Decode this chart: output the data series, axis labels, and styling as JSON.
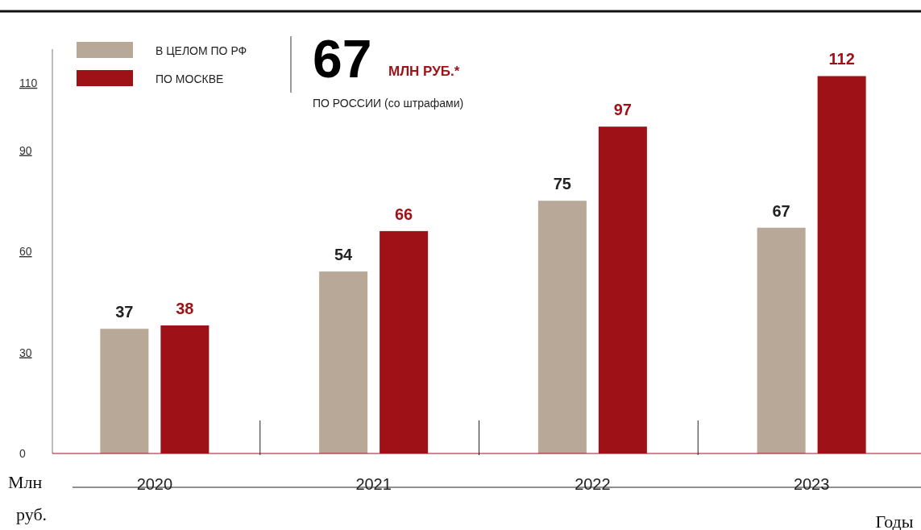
{
  "chart_data": {
    "type": "bar",
    "categories": [
      "2020",
      "2021",
      "2022",
      "2023"
    ],
    "series": [
      {
        "name": "В ЦЕЛОМ ПО РФ",
        "color": "#b8a897",
        "values": [
          37,
          54,
          75,
          67
        ]
      },
      {
        "name": "ПО МОСКВЕ",
        "color": "#9e1117",
        "values": [
          38,
          66,
          97,
          112
        ]
      }
    ],
    "ylim": [
      0,
      120
    ],
    "yticks": [
      0,
      30,
      60,
      90,
      110
    ],
    "data_labels": true,
    "legend": "top left",
    "grid": false,
    "xlabel": "Годы",
    "ylabel": "Млн руб.",
    "annotations": [
      "67",
      "МЛН РУБ.*",
      "ПО РОССИИ (со штрафами)"
    ]
  }
}
